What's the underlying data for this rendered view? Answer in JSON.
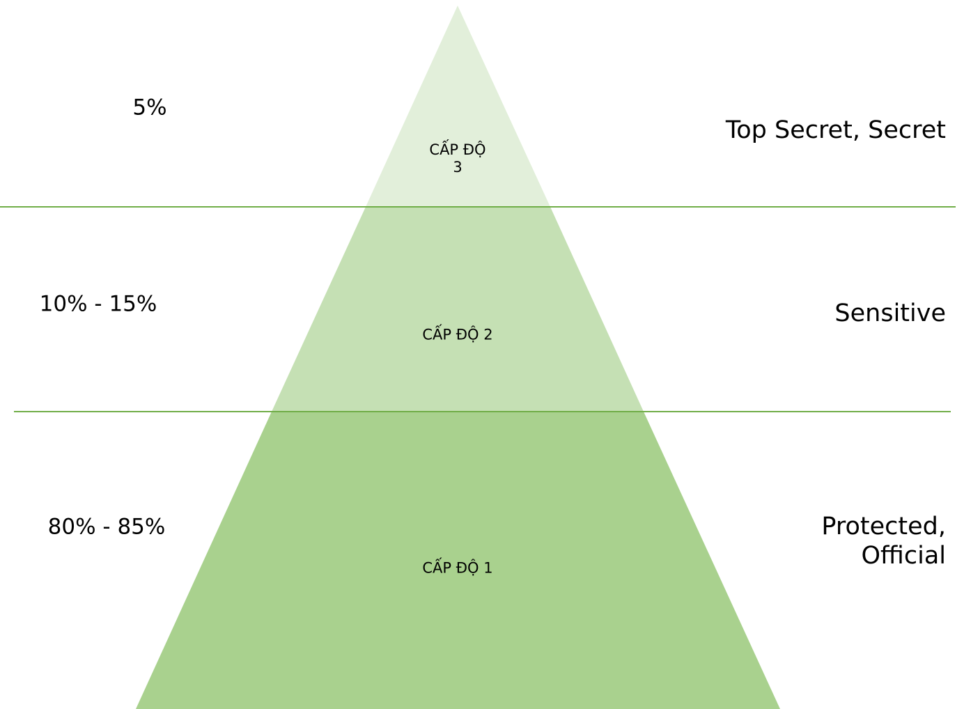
{
  "levels": [
    {
      "label": "CẤP ĐỘ 3",
      "share": "5%",
      "classification": "Top Secret, Secret"
    },
    {
      "label": "CẤP ĐỘ 2",
      "share": "10% - 15%",
      "classification": "Sensitive"
    },
    {
      "label": "CẤP ĐỘ 1",
      "share": "80% - 85%",
      "classification": "Protected, Official"
    }
  ]
}
